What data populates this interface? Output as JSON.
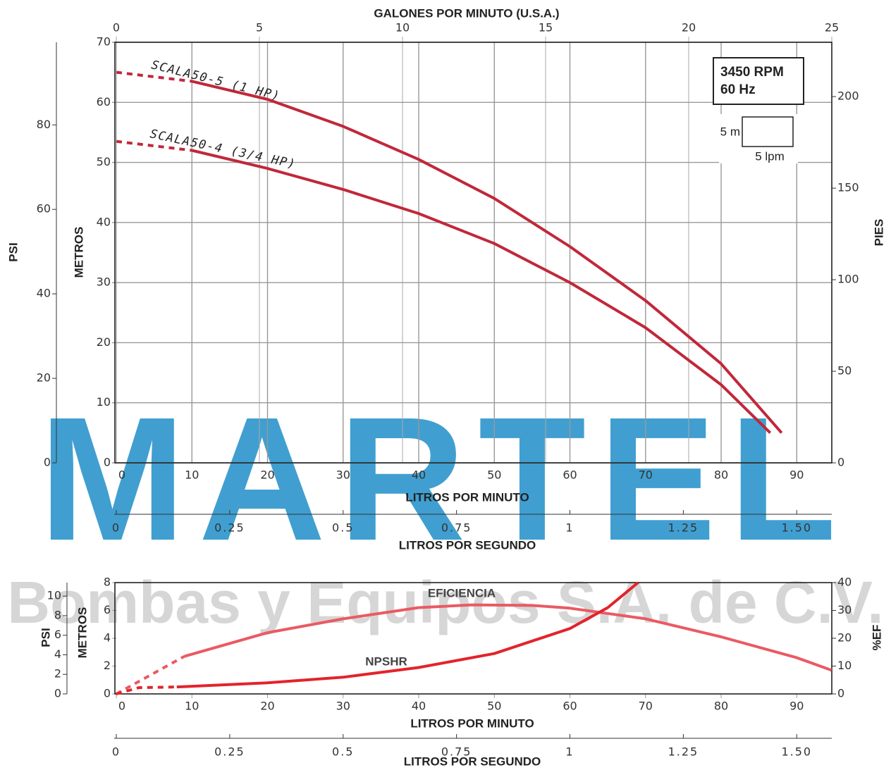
{
  "watermark": {
    "logo": "MARTEL",
    "text": "Bombas y Equipos S.A. de C.V."
  },
  "chart_data": [
    {
      "type": "line",
      "x_label": "LITROS POR MINUTO",
      "top_x_label": "GALONES POR MINUTO (U.S.A.)",
      "lps_label": "LITROS POR SEGUNDO",
      "y_label": "METROS",
      "psi_label": "PSI",
      "y2_label": "PIES",
      "xlim": [
        0,
        94.635
      ],
      "xticks": [
        0,
        10,
        20,
        30,
        40,
        50,
        60,
        70,
        80,
        90
      ],
      "top_xlim": [
        0,
        25
      ],
      "top_xticks": [
        0,
        5,
        10,
        15,
        20,
        25
      ],
      "lps_lim": [
        0,
        1.5773
      ],
      "lps_ticks": [
        0,
        0.25,
        0.5,
        0.75,
        1,
        1.25,
        {
          "value": 1.5,
          "label": "1.50"
        }
      ],
      "ylim": [
        0,
        70
      ],
      "yticks": [
        0,
        10,
        20,
        30,
        40,
        50,
        60,
        70
      ],
      "psi_lim": [
        0,
        99.56
      ],
      "psi_ticks": [
        0,
        20,
        40,
        60,
        80
      ],
      "y2lim": [
        0,
        229.66
      ],
      "y2ticks": [
        0,
        50,
        100,
        150,
        200
      ],
      "grid": true,
      "box": [
        "3450 RPM",
        "60 Hz"
      ],
      "scale_labels": [
        "5 m",
        "5 lpm"
      ],
      "series": [
        {
          "name": "SCALA50-5 (1 HP)",
          "color": "#c0283a",
          "dashed_to_x": 10,
          "x": [
            0,
            10,
            20,
            30,
            40,
            50,
            60,
            70,
            80,
            88
          ],
          "values": [
            65,
            63.5,
            60.5,
            56,
            50.5,
            44,
            36,
            27,
            16.5,
            5
          ]
        },
        {
          "name": "SCALA50-4 (3/4 HP)",
          "color": "#c0283a",
          "dashed_to_x": 10,
          "x": [
            0,
            10,
            20,
            30,
            40,
            50,
            60,
            70,
            80,
            86.5
          ],
          "values": [
            53.5,
            52,
            49,
            45.5,
            41.5,
            36.5,
            30,
            22.5,
            13,
            5
          ]
        }
      ]
    },
    {
      "type": "line",
      "x_label": "LITROS POR MINUTO",
      "lps_label": "LITROS POR SEGUNDO",
      "y_label": "METROS",
      "psi_label": "PSI",
      "y2_label": "%EF",
      "xlim": [
        0,
        94.635
      ],
      "xticks": [
        0,
        10,
        20,
        30,
        40,
        50,
        60,
        70,
        80,
        90
      ],
      "lps_lim": [
        0,
        1.5773
      ],
      "lps_ticks": [
        0,
        0.25,
        0.5,
        0.75,
        1,
        1.25,
        {
          "value": 1.5,
          "label": "1.50"
        }
      ],
      "ylim": [
        0,
        8
      ],
      "yticks": [
        0,
        2,
        4,
        6,
        8
      ],
      "psi_lim": [
        0,
        11.38
      ],
      "psi_ticks": [
        0,
        2,
        4,
        6,
        8,
        10
      ],
      "y2lim": [
        0,
        40
      ],
      "y2ticks": [
        0,
        10,
        20,
        30,
        40
      ],
      "grid": false,
      "series": [
        {
          "name": "EFICIENCIA",
          "color": "#ea5a63",
          "axis": "y2",
          "dashed_to_x": 9,
          "x": [
            0,
            9,
            20,
            30,
            40,
            47,
            55,
            60,
            70,
            80,
            90,
            94.6
          ],
          "values": [
            0,
            13.5,
            22,
            27,
            31,
            32,
            31.8,
            30.8,
            27,
            20.5,
            13,
            8.5
          ]
        },
        {
          "name": "NPSHR",
          "color": "#e3232b",
          "dashed_to_x": 8,
          "x": [
            0,
            3,
            8,
            20,
            30,
            40,
            50,
            60,
            65,
            69
          ],
          "values": [
            0,
            0.45,
            0.5,
            0.8,
            1.2,
            1.9,
            2.9,
            4.7,
            6.2,
            8
          ]
        }
      ]
    }
  ]
}
